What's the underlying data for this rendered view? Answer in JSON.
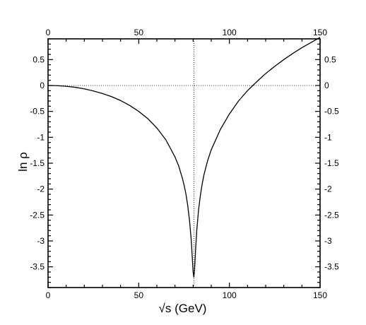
{
  "chart_data": {
    "type": "line",
    "title": "",
    "xlabel": "√s   (GeV)",
    "ylabel": "ln ρ",
    "xlim": [
      0,
      150
    ],
    "ylim": [
      -3.9,
      0.9
    ],
    "x_ticks": [
      0,
      50,
      100,
      150
    ],
    "y_ticks": [
      0.5,
      0,
      -0.5,
      -1,
      -1.5,
      -2,
      -2.5,
      -3,
      -3.5
    ],
    "mirror_axes": true,
    "grid": false,
    "reference_lines": [
      {
        "orientation": "horizontal",
        "value": 0,
        "style": "dotted"
      },
      {
        "orientation": "vertical",
        "value": 80.4,
        "style": "dotted"
      }
    ],
    "series": [
      {
        "color": "#000000",
        "x": [
          0,
          5,
          10,
          15,
          20,
          25,
          30,
          35,
          40,
          45,
          50,
          55,
          60,
          65,
          70,
          72,
          74,
          75,
          76,
          77,
          78,
          79,
          79.5,
          80,
          80.4,
          80.8,
          81.3,
          82,
          83,
          84,
          85,
          86,
          88,
          90,
          95,
          100,
          105,
          110,
          115,
          120,
          125,
          130,
          135,
          140,
          145,
          150
        ],
        "y": [
          0,
          -0.003,
          -0.015,
          -0.035,
          -0.065,
          -0.105,
          -0.155,
          -0.215,
          -0.29,
          -0.385,
          -0.5,
          -0.64,
          -0.82,
          -1.05,
          -1.38,
          -1.55,
          -1.78,
          -1.92,
          -2.09,
          -2.31,
          -2.6,
          -3.0,
          -3.3,
          -3.6,
          -3.7,
          -3.55,
          -3.2,
          -2.8,
          -2.4,
          -2.12,
          -1.9,
          -1.72,
          -1.45,
          -1.24,
          -0.85,
          -0.55,
          -0.3,
          -0.1,
          0.07,
          0.23,
          0.37,
          0.5,
          0.62,
          0.73,
          0.83,
          0.93
        ]
      }
    ]
  }
}
